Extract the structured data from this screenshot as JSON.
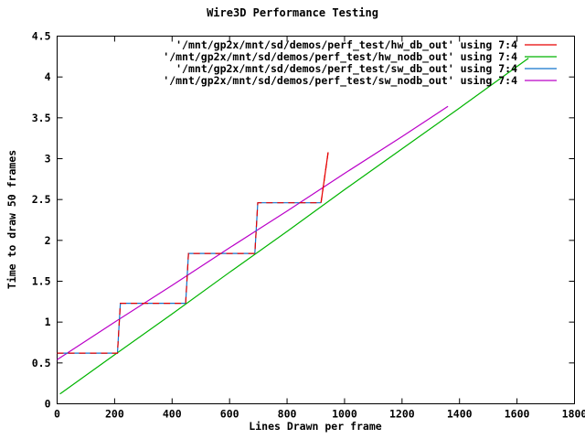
{
  "window": {
    "background": "#ffffff",
    "text_color": "#000000"
  },
  "chart_data": {
    "type": "line",
    "title": "Wire3D Performance Testing",
    "xlabel": "Lines Drawn per frame",
    "ylabel": "Time to draw 50 frames",
    "xlim": [
      0,
      1800
    ],
    "ylim": [
      0,
      4.5
    ],
    "xticks": [
      0,
      200,
      400,
      600,
      800,
      1000,
      1200,
      1400,
      1600,
      1800
    ],
    "yticks": [
      0,
      0.5,
      1,
      1.5,
      2,
      2.5,
      3,
      3.5,
      4,
      4.5
    ],
    "grid": false,
    "legend_position": "top-center-inside",
    "axis_color": "#000000",
    "tick_style": "inward-mirrored",
    "series": [
      {
        "id": "hw_db_out",
        "name": "'/mnt/gp2x/mnt/sd/demos/perf_test/hw_db_out' using 7:4",
        "color": "#e60000",
        "dash": "7 5",
        "solid_tail_points": 2,
        "points": [
          [
            0,
            0.62
          ],
          [
            210,
            0.62
          ],
          [
            220,
            1.23
          ],
          [
            447,
            1.23
          ],
          [
            457,
            1.84
          ],
          [
            688,
            1.84
          ],
          [
            698,
            2.46
          ],
          [
            918,
            2.46
          ],
          [
            943,
            3.08
          ]
        ]
      },
      {
        "id": "hw_nodb_out",
        "name": "'/mnt/gp2x/mnt/sd/demos/perf_test/hw_nodb_out' using 7:4",
        "color": "#00b400",
        "points": [
          [
            10,
            0.12
          ],
          [
            200,
            0.6
          ],
          [
            400,
            1.1
          ],
          [
            600,
            1.61
          ],
          [
            800,
            2.11
          ],
          [
            1000,
            2.62
          ],
          [
            1200,
            3.12
          ],
          [
            1400,
            3.62
          ],
          [
            1640,
            4.23
          ]
        ]
      },
      {
        "id": "sw_db_out",
        "name": "'/mnt/gp2x/mnt/sd/demos/perf_test/sw_db_out' using 7:4",
        "color": "#1374cc",
        "points": [
          [
            0,
            0.62
          ],
          [
            210,
            0.62
          ],
          [
            220,
            1.23
          ],
          [
            447,
            1.23
          ],
          [
            457,
            1.84
          ],
          [
            688,
            1.84
          ],
          [
            698,
            2.46
          ],
          [
            918,
            2.46
          ]
        ]
      },
      {
        "id": "sw_nodb_out",
        "name": "'/mnt/gp2x/mnt/sd/demos/perf_test/sw_nodb_out' using 7:4",
        "color": "#ba00c8",
        "points": [
          [
            0,
            0.54
          ],
          [
            200,
            1.0
          ],
          [
            400,
            1.45
          ],
          [
            600,
            1.91
          ],
          [
            800,
            2.36
          ],
          [
            1000,
            2.82
          ],
          [
            1200,
            3.27
          ],
          [
            1360,
            3.64
          ]
        ]
      }
    ]
  }
}
